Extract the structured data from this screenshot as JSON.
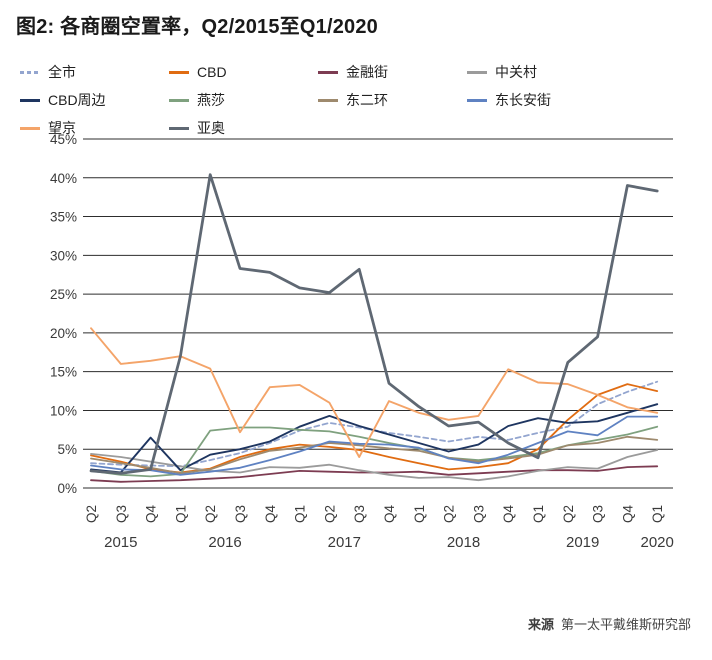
{
  "title": "图2: 各商圈空置率，Q2/2015至Q1/2020",
  "source": {
    "label": "来源",
    "text": "第一太平戴维斯研究部"
  },
  "chart_data": {
    "type": "line",
    "title": "图2: 各商圈空置率，Q2/2015至Q1/2020",
    "xlabel": "",
    "ylabel": "",
    "ylim": [
      0,
      45
    ],
    "y_tick_step": 5,
    "y_tick_suffix": "%",
    "grid": true,
    "legend_position": "top",
    "x_labels": [
      "Q2",
      "Q3",
      "Q4",
      "Q1",
      "Q2",
      "Q3",
      "Q4",
      "Q1",
      "Q2",
      "Q3",
      "Q4",
      "Q1",
      "Q2",
      "Q3",
      "Q4",
      "Q1",
      "Q2",
      "Q3",
      "Q4",
      "Q1"
    ],
    "years": [
      {
        "label": "2015",
        "center": 1
      },
      {
        "label": "2016",
        "center": 4.5
      },
      {
        "label": "2017",
        "center": 8.5
      },
      {
        "label": "2018",
        "center": 12.5
      },
      {
        "label": "2019",
        "center": 16.5
      },
      {
        "label": "2020",
        "center": 19
      }
    ],
    "series": [
      {
        "name": "全市",
        "color": "#93a5cf",
        "dash": true,
        "width": 1.8,
        "values": [
          3.2,
          3.0,
          2.9,
          2.8,
          3.6,
          4.5,
          5.8,
          7.4,
          8.4,
          7.8,
          7.1,
          6.6,
          6.0,
          6.6,
          6.2,
          7.1,
          7.9,
          10.8,
          12.4,
          13.7
        ]
      },
      {
        "name": "CBD",
        "color": "#e06c12",
        "dash": false,
        "width": 1.8,
        "values": [
          4.2,
          3.4,
          2.4,
          2.0,
          2.5,
          4.0,
          5.0,
          5.6,
          5.3,
          4.9,
          4.0,
          3.2,
          2.4,
          2.7,
          3.2,
          5.0,
          8.8,
          12.0,
          13.4,
          12.5
        ]
      },
      {
        "name": "金融街",
        "color": "#7d3c52",
        "dash": false,
        "width": 1.8,
        "values": [
          1.0,
          0.8,
          0.9,
          1.0,
          1.2,
          1.4,
          1.8,
          2.2,
          2.1,
          2.0,
          2.0,
          2.1,
          1.7,
          1.9,
          2.1,
          2.3,
          2.3,
          2.2,
          2.7,
          2.8
        ]
      },
      {
        "name": "中关村",
        "color": "#9b9b9b",
        "dash": false,
        "width": 1.8,
        "values": [
          4.4,
          4.0,
          3.4,
          2.8,
          2.2,
          2.0,
          2.7,
          2.6,
          3.0,
          2.3,
          1.7,
          1.3,
          1.4,
          1.0,
          1.5,
          2.2,
          2.7,
          2.5,
          4.0,
          4.9
        ]
      },
      {
        "name": "CBD周边",
        "color": "#1e3560",
        "dash": false,
        "width": 1.9,
        "values": [
          2.4,
          2.0,
          6.5,
          2.3,
          4.3,
          5.0,
          6.0,
          7.9,
          9.3,
          8.0,
          6.9,
          5.8,
          4.7,
          5.6,
          8.0,
          9.0,
          8.4,
          8.6,
          9.7,
          10.8
        ]
      },
      {
        "name": "燕莎",
        "color": "#7fa17f",
        "dash": false,
        "width": 1.8,
        "values": [
          2.2,
          1.7,
          1.5,
          1.8,
          7.4,
          7.8,
          7.8,
          7.5,
          7.3,
          6.6,
          5.8,
          5.1,
          3.9,
          3.6,
          4.0,
          4.5,
          5.5,
          6.2,
          6.9,
          7.9
        ]
      },
      {
        "name": "东二环",
        "color": "#9e8a6e",
        "dash": false,
        "width": 1.8,
        "values": [
          3.8,
          3.2,
          2.6,
          1.9,
          2.4,
          3.7,
          4.8,
          5.2,
          5.8,
          5.5,
          5.1,
          4.8,
          3.9,
          3.4,
          3.8,
          4.3,
          5.5,
          5.8,
          6.6,
          6.2
        ]
      },
      {
        "name": "东长安街",
        "color": "#5f82c2",
        "dash": false,
        "width": 1.8,
        "values": [
          2.9,
          2.4,
          2.3,
          1.7,
          2.1,
          2.6,
          3.6,
          4.7,
          6.0,
          5.7,
          5.6,
          5.2,
          3.8,
          3.2,
          4.3,
          5.8,
          7.3,
          6.8,
          9.2,
          9.2
        ]
      },
      {
        "name": "望京",
        "color": "#f4a469",
        "dash": false,
        "width": 1.9,
        "values": [
          20.6,
          16.0,
          16.4,
          17.0,
          15.4,
          7.2,
          13.0,
          13.3,
          11.0,
          4.0,
          11.2,
          9.7,
          8.8,
          9.3,
          15.3,
          13.6,
          13.4,
          12.0,
          10.4,
          9.7
        ]
      },
      {
        "name": "亚奥",
        "color": "#5f6873",
        "dash": false,
        "width": 2.8,
        "values": [
          2.2,
          1.9,
          2.4,
          17.0,
          40.4,
          28.3,
          27.8,
          25.8,
          25.2,
          28.2,
          13.5,
          10.5,
          8.0,
          8.5,
          5.8,
          3.9,
          16.2,
          19.5,
          39.0,
          38.3
        ]
      }
    ]
  }
}
